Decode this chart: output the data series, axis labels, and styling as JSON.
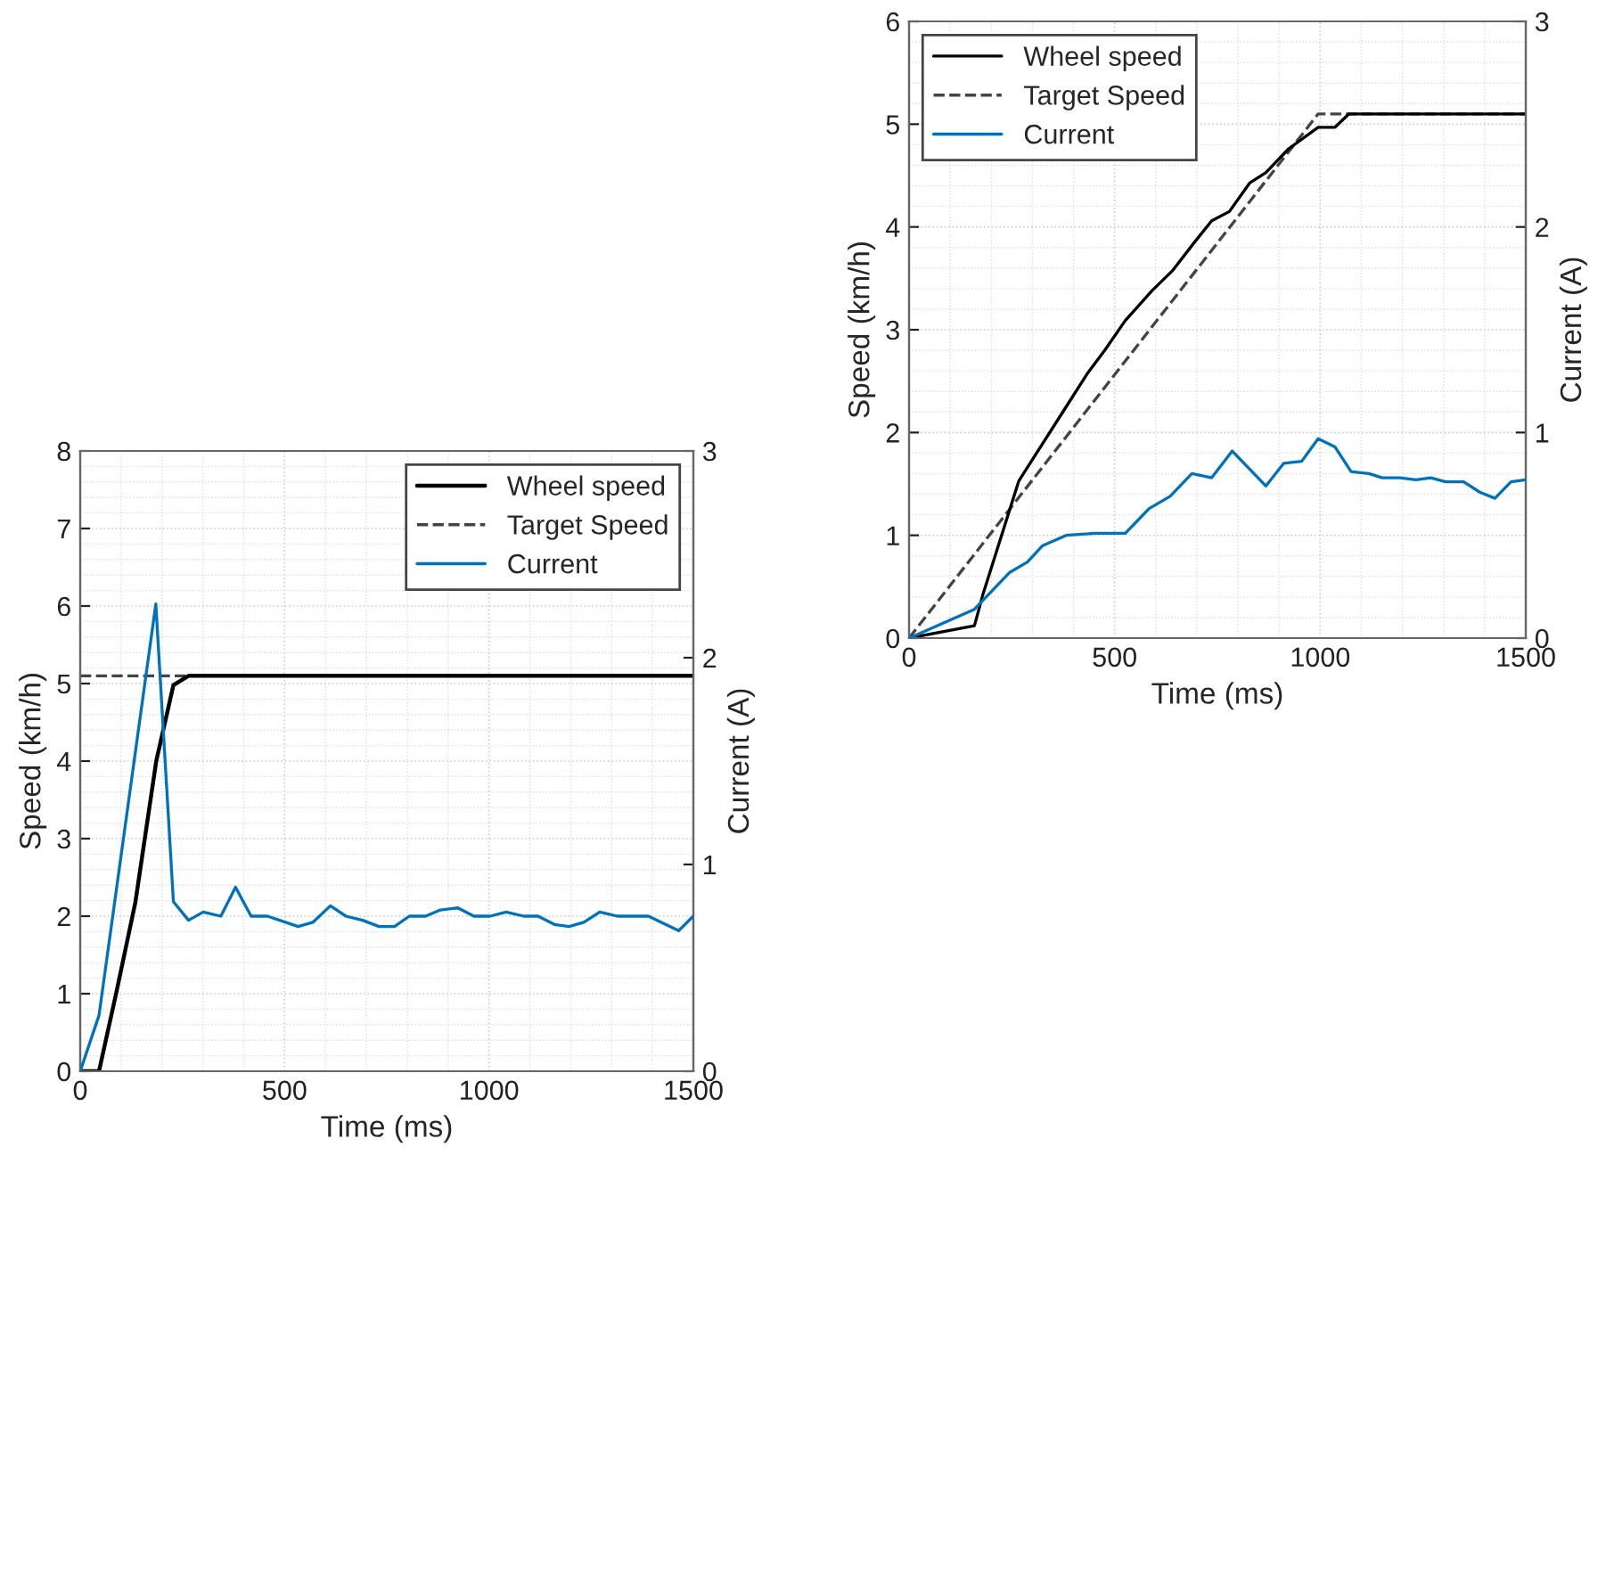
{
  "chart_data": [
    {
      "type": "line",
      "xlabel": "Time (ms)",
      "ylabel": "Speed (km/h)",
      "y2label": "Current (A)",
      "xlim": [
        0,
        1500
      ],
      "xticks": [
        0,
        500,
        1000,
        1500
      ],
      "ylim": [
        0,
        8
      ],
      "yticks": [
        0,
        1,
        2,
        3,
        4,
        5,
        6,
        7,
        8
      ],
      "y2lim": [
        0,
        3
      ],
      "y2ticks": [
        0,
        1,
        2,
        3
      ],
      "grid": true,
      "legend": "top right",
      "series": [
        {
          "name": "Wheel speed",
          "color": "#000000",
          "line_style": "solid",
          "x": [
            0,
            46,
            89,
            135,
            186,
            228,
            265,
            1500
          ],
          "values": [
            0,
            0,
            1.03,
            2.18,
            4.0,
            4.98,
            5.1,
            5.1
          ]
        },
        {
          "name": "Target Speed",
          "color": "#444444",
          "line_style": "dashed",
          "x": [
            0,
            265
          ],
          "values": [
            5.1,
            5.1
          ]
        },
        {
          "name": "Current",
          "color": "#0072bd",
          "line_style": "solid",
          "axis": "y2",
          "x": [
            0,
            46,
            185,
            228,
            265,
            301,
            344,
            380,
            418,
            458,
            533,
            569,
            612,
            650,
            691,
            731,
            769,
            805,
            845,
            881,
            924,
            963,
            1003,
            1042,
            1085,
            1120,
            1160,
            1196,
            1232,
            1271,
            1314,
            1390,
            1464,
            1500
          ],
          "values": [
            0,
            0.27,
            2.26,
            0.82,
            0.73,
            0.77,
            0.75,
            0.89,
            0.75,
            0.75,
            0.7,
            0.72,
            0.8,
            0.75,
            0.73,
            0.7,
            0.7,
            0.75,
            0.75,
            0.78,
            0.79,
            0.75,
            0.75,
            0.77,
            0.75,
            0.75,
            0.71,
            0.7,
            0.72,
            0.77,
            0.75,
            0.75,
            0.68,
            0.75
          ]
        }
      ]
    },
    {
      "type": "line",
      "xlabel": "Time (ms)",
      "ylabel": "Speed (km/h)",
      "y2label": "Current (A)",
      "xlim": [
        0,
        1500
      ],
      "xticks": [
        0,
        500,
        1000,
        1500
      ],
      "ylim": [
        0,
        6
      ],
      "yticks": [
        0,
        1,
        2,
        3,
        4,
        5,
        6
      ],
      "y2lim": [
        0,
        3
      ],
      "y2ticks": [
        0,
        1,
        2,
        3
      ],
      "grid": true,
      "legend": "top left",
      "series": [
        {
          "name": "Wheel speed",
          "color": "#000000",
          "line_style": "solid",
          "x": [
            0,
            159,
            180,
            267,
            382,
            433,
            476,
            526,
            591,
            642,
            692,
            736,
            779,
            829,
            868,
            923,
            995,
            1036,
            1070,
            1500
          ],
          "values": [
            0,
            0.12,
            0.43,
            1.53,
            2.25,
            2.57,
            2.8,
            3.09,
            3.38,
            3.58,
            3.84,
            4.06,
            4.15,
            4.43,
            4.53,
            4.76,
            4.97,
            4.97,
            5.1,
            5.1
          ]
        },
        {
          "name": "Target Speed",
          "color": "#444444",
          "line_style": "dashed",
          "x": [
            0,
            995,
            1500
          ],
          "values": [
            0,
            5.1,
            5.1
          ]
        },
        {
          "name": "Current",
          "color": "#0072bd",
          "line_style": "solid",
          "axis": "y2",
          "x": [
            0,
            159,
            245,
            288,
            325,
            382,
            454,
            526,
            584,
            635,
            688,
            736,
            786,
            868,
            911,
            955,
            995,
            1036,
            1075,
            1118,
            1151,
            1194,
            1233,
            1269,
            1305,
            1349,
            1388,
            1425,
            1464,
            1500
          ],
          "values": [
            0,
            0.14,
            0.32,
            0.37,
            0.45,
            0.5,
            0.51,
            0.51,
            0.63,
            0.69,
            0.8,
            0.78,
            0.91,
            0.74,
            0.85,
            0.86,
            0.97,
            0.93,
            0.81,
            0.8,
            0.78,
            0.78,
            0.77,
            0.78,
            0.76,
            0.76,
            0.71,
            0.68,
            0.76,
            0.77
          ]
        }
      ]
    }
  ]
}
